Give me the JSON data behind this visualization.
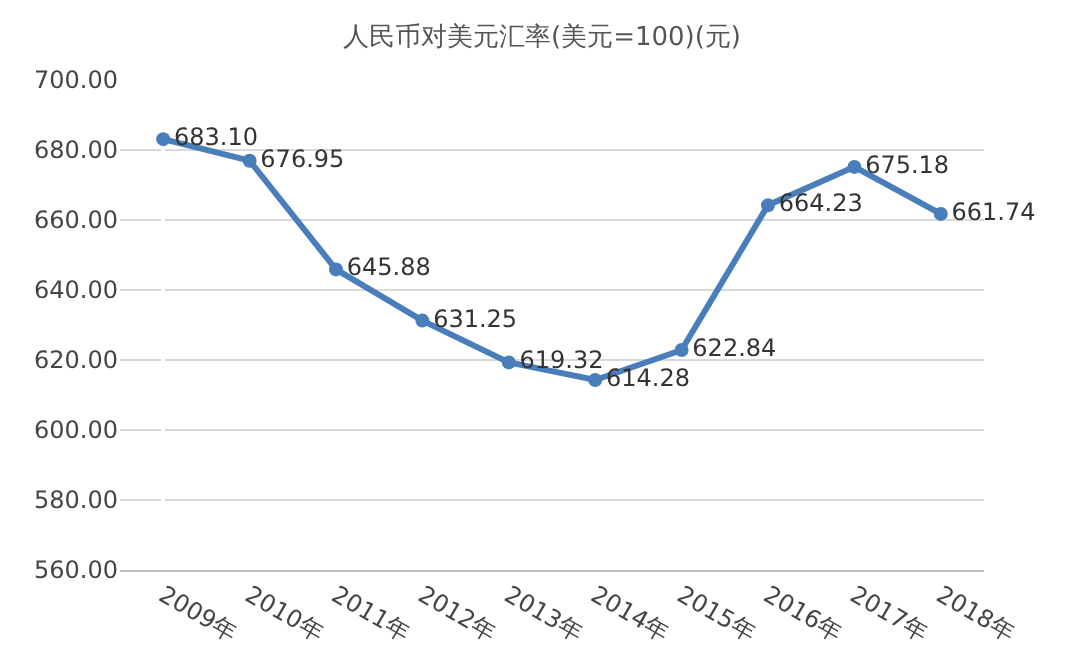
{
  "chart_data": {
    "type": "line",
    "title": "人民币对美元汇率(美元=100)(元)",
    "categories": [
      "2009年",
      "2010年",
      "2011年",
      "2012年",
      "2013年",
      "2014年",
      "2015年",
      "2016年",
      "2017年",
      "2018年"
    ],
    "series": [
      {
        "color": "#4a7ebb",
        "values": [
          683.1,
          676.95,
          645.88,
          631.25,
          619.32,
          614.28,
          622.84,
          664.23,
          675.18,
          661.74
        ],
        "value_labels": [
          "683.10",
          "676.95",
          "645.88",
          "631.25",
          "619.32",
          "614.28",
          "622.84",
          "664.23",
          "675.18",
          "661.74"
        ]
      }
    ],
    "ylim": [
      560,
      700
    ],
    "yticks": [
      {
        "value": 560,
        "label": "560.00"
      },
      {
        "value": 580,
        "label": "580.00"
      },
      {
        "value": 600,
        "label": "600.00"
      },
      {
        "value": 620,
        "label": "620.00"
      },
      {
        "value": 640,
        "label": "640.00"
      },
      {
        "value": 660,
        "label": "660.00"
      },
      {
        "value": 680,
        "label": "680.00"
      },
      {
        "value": 700,
        "label": "700.00"
      }
    ],
    "grid": "y",
    "marker": "circle",
    "line_style": "solid"
  }
}
